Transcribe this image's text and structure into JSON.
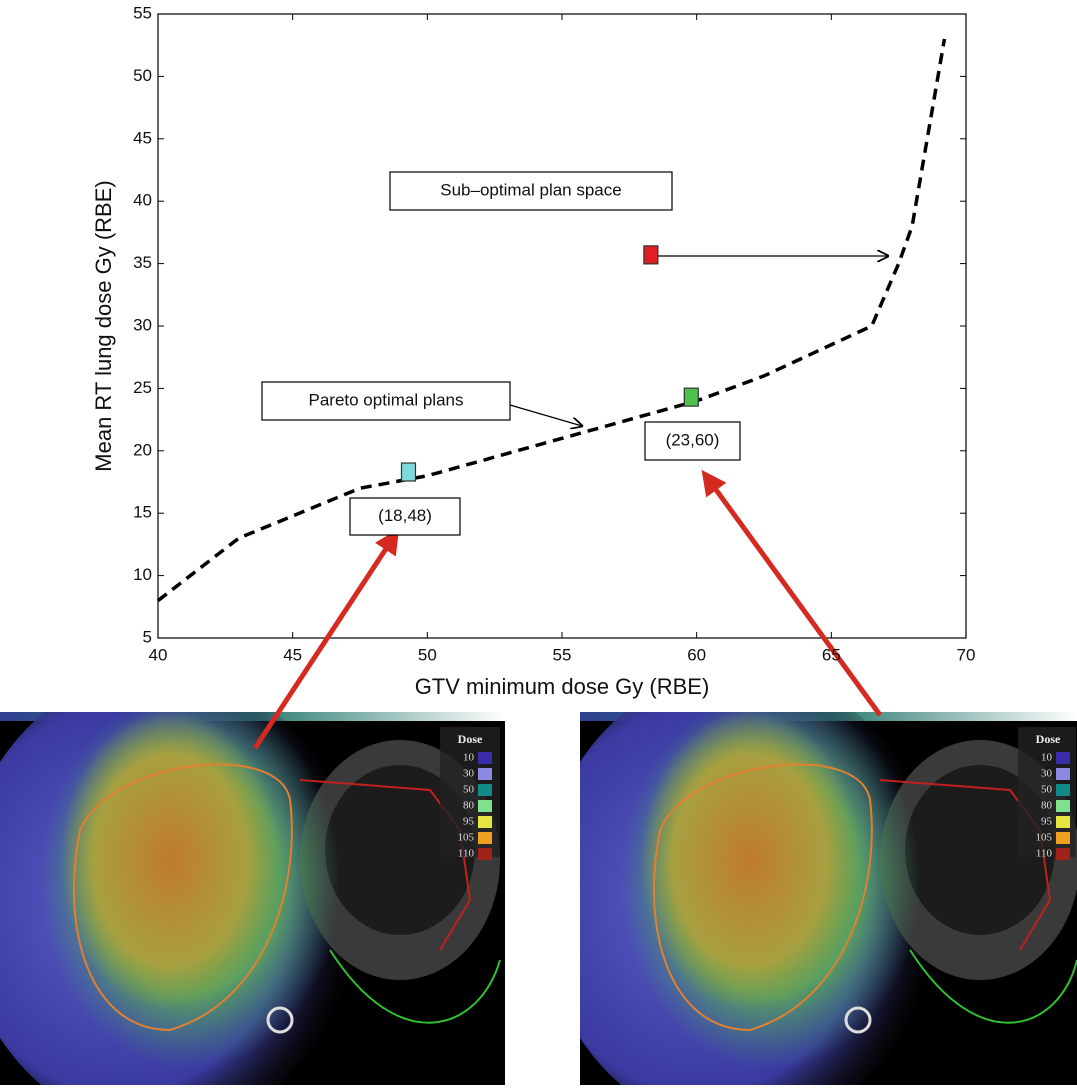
{
  "chart_data": {
    "type": "line",
    "xlabel": "GTV minimum dose Gy (RBE)",
    "ylabel": "Mean RT lung dose Gy (RBE)",
    "xlim": [
      40,
      70
    ],
    "ylim": [
      5,
      55
    ],
    "xticks": [
      40,
      45,
      50,
      55,
      60,
      65,
      70
    ],
    "yticks": [
      5,
      10,
      15,
      20,
      25,
      30,
      35,
      40,
      45,
      50,
      55
    ],
    "x": [
      40,
      43,
      47.5,
      50,
      55,
      60,
      62.5,
      66.5,
      67.5,
      68,
      69.2
    ],
    "values": [
      8,
      13,
      17,
      18,
      21,
      24,
      26,
      30,
      35,
      38,
      53
    ],
    "color": "#000000",
    "points": {
      "x": [
        49.3,
        59.8,
        58.3
      ],
      "values": [
        18.3,
        24.3,
        35.7
      ],
      "colors": [
        "#7fd8dc",
        "#4cc24c",
        "#e02020"
      ]
    },
    "annotations": [
      "Sub–optimal plan space",
      "Pareto optimal plans",
      "(18,48)",
      "(23,60)"
    ],
    "dose_legend": {
      "title": "Dose",
      "levels": [
        10,
        30,
        50,
        80,
        95,
        105,
        110
      ],
      "colors": [
        "#3a2ea8",
        "#8a8ae0",
        "#138a8a",
        "#7fe08f",
        "#e6e640",
        "#f0a020",
        "#a0201a"
      ]
    }
  }
}
